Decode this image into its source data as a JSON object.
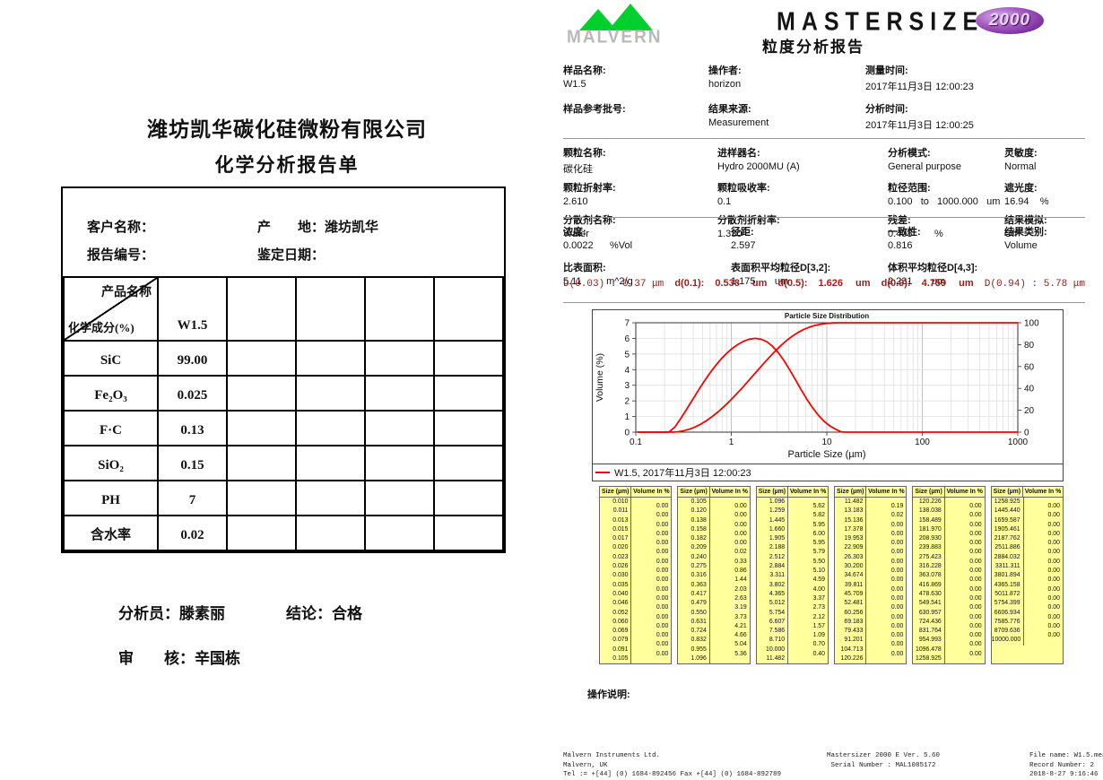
{
  "left_report": {
    "company": "潍坊凯华碳化硅微粉有限公司",
    "title": "化学分析报告单",
    "info": {
      "customer_label": "客户名称：",
      "origin_label": "产　　地：",
      "origin_value": "潍坊凯华",
      "report_no_label": "报告编号：",
      "date_label": "鉴定日期："
    },
    "table": {
      "diag_top": "产品名称",
      "diag_bottom": "化学成分(%)",
      "product": "W1.5",
      "empty_cols": 4,
      "rows": [
        {
          "name": "SiC",
          "value": "99.00"
        },
        {
          "name": "Fe₂O₃",
          "value": "0.025"
        },
        {
          "name": "F·C",
          "value": "0.13"
        },
        {
          "name": "SiO₂",
          "value": "0.15"
        },
        {
          "name": "PH",
          "value": "7"
        },
        {
          "name": "含水率",
          "value": "0.02"
        }
      ]
    },
    "signatures": {
      "analyst_label": "分析员：",
      "analyst": "滕素丽",
      "conclusion_label": "结论：",
      "conclusion": "合格",
      "reviewer_label": "审　　核：",
      "reviewer": "辛国栋"
    }
  },
  "right_report": {
    "brand": {
      "malvern_word": "MALVERN",
      "product_word": "MASTERSIZER",
      "badge": "2000",
      "report_title": "粒度分析报告",
      "green": "#00d02e",
      "purple": "#7b2f9e"
    },
    "sample_fields": [
      {
        "label": "样品名称:",
        "value": "W1.5"
      },
      {
        "label": "操作者:",
        "value": "horizon"
      },
      {
        "label": "测量时间:",
        "value": "2017年11月3日 12:00:23"
      },
      {
        "label": "样品参考批号:",
        "value": ""
      },
      {
        "label": "结果来源:",
        "value": "Measurement"
      },
      {
        "label": "分析时间:",
        "value": "2017年11月3日 12:00:25"
      }
    ],
    "setup_fields": [
      {
        "label": "颗粒名称:",
        "value": "碳化硅"
      },
      {
        "label": "进样器名:",
        "value": "Hydro 2000MU (A)"
      },
      {
        "label": "分析模式:",
        "value": "General purpose"
      },
      {
        "label": "灵敏度:",
        "value": "Normal"
      },
      {
        "label": "颗粒折射率:",
        "value": "2.610"
      },
      {
        "label": "颗粒吸收率:",
        "value": "0.1"
      },
      {
        "label": "粒径范围:",
        "value": "0.100   to   1000.000   um"
      },
      {
        "label": "遮光度:",
        "value": "16.94    %"
      },
      {
        "label": "分散剂名称:",
        "value": "Water"
      },
      {
        "label": "分散剂折射率:",
        "value": "1.330"
      },
      {
        "label": "残差:",
        "value": "0.408        %"
      },
      {
        "label": "结果模拟:",
        "value": "Off"
      }
    ],
    "result_fields": [
      {
        "label": "浓度:",
        "value": "0.0022      %Vol"
      },
      {
        "label": "径距:",
        "value": "2.597"
      },
      {
        "label": "一致性:",
        "value": "0.816"
      },
      {
        "label": "结果类别:",
        "value": "Volume"
      },
      {
        "label": "比表面积:",
        "value": "5.11         m^2/g"
      },
      {
        "label": "表面积平均粒径D[3,2]:",
        "value": "1.175       um"
      },
      {
        "label": "体积平均粒径D[4,3]:",
        "value": "2.231       um"
      },
      {
        "label": "",
        "value": ""
      }
    ],
    "dvalues": [
      {
        "text": "D(0.03) : 0.37 μm",
        "mono": true
      },
      {
        "label": "d(0.1):",
        "value": "0.538",
        "unit": "um"
      },
      {
        "label": "d(0.5):",
        "value": "1.626",
        "unit": "um"
      },
      {
        "label": "d(0.9):",
        "value": "4.759",
        "unit": "um"
      },
      {
        "text": "D(0.94) : 5.78 μm",
        "mono": true
      }
    ],
    "dark_red": "#9e1c1c",
    "operation_note_label": "操作说明:",
    "footer": {
      "left": [
        "Malvern Instruments Ltd.",
        "Malvern, UK",
        "Tel := +[44] (0) 1684-892456 Fax +[44] (0) 1684-892789"
      ],
      "center": [
        "Mastersizer 2000 E Ver. 5.60",
        " Serial Number : MAL1085172"
      ],
      "right": [
        "File name: W1.5.mea",
        "Record Number: 2",
        "2018-8-27 9:16:46"
      ]
    }
  },
  "chart_data": {
    "type": "line",
    "title": "Particle Size Distribution",
    "xlabel": "Particle Size (µm)",
    "ylabel_left": "Volume (%)",
    "x_scale": "log",
    "xlim": [
      0.1,
      1000
    ],
    "ylim_left": [
      0,
      7
    ],
    "ylim_right": [
      0,
      100
    ],
    "x_ticks": [
      "0.1",
      "1",
      "10",
      "100",
      "1000"
    ],
    "y_ticks_left": [
      0,
      1,
      2,
      3,
      4,
      5,
      6,
      7
    ],
    "y_ticks_right": [
      0,
      20,
      40,
      60,
      80,
      100
    ],
    "grid": true,
    "legend": {
      "label": "W1.5, 2017年11月3日  12:00:23",
      "color": "#ff0000",
      "position": "bottom"
    },
    "series": [
      {
        "name": "volume-frequency",
        "axis": "left",
        "color": "#ff0000",
        "x": [
          0.105,
          0.182,
          0.224,
          0.257,
          0.295,
          0.339,
          0.389,
          0.447,
          0.513,
          0.589,
          0.676,
          0.776,
          0.891,
          1.023,
          1.175,
          1.349,
          1.549,
          1.778,
          2.042,
          2.344,
          2.692,
          3.09,
          3.548,
          4.074,
          4.677,
          5.37,
          6.166,
          7.079,
          8.128,
          9.333,
          10.715,
          12.303,
          14.125,
          15.8,
          1000
        ],
        "y": [
          0,
          0,
          0.02,
          0.33,
          0.86,
          1.44,
          2.03,
          2.63,
          3.19,
          3.73,
          4.21,
          4.66,
          5.04,
          5.36,
          5.62,
          5.82,
          5.95,
          6.0,
          5.95,
          5.79,
          5.5,
          5.1,
          4.59,
          4.0,
          3.37,
          2.73,
          2.12,
          1.57,
          1.09,
          0.7,
          0.4,
          0.19,
          0.02,
          0,
          0
        ]
      },
      {
        "name": "cumulative-undersize",
        "axis": "right",
        "color": "#ff0000",
        "x": [
          0.105,
          0.209,
          0.24,
          0.275,
          0.316,
          0.363,
          0.417,
          0.479,
          0.55,
          0.631,
          0.724,
          0.832,
          0.955,
          1.096,
          1.259,
          1.445,
          1.66,
          1.905,
          2.188,
          2.512,
          2.884,
          3.311,
          3.802,
          4.365,
          5.012,
          5.754,
          6.607,
          7.586,
          8.71,
          10.0,
          11.482,
          13.183,
          15.136,
          1000
        ],
        "y": [
          0,
          0,
          0.02,
          0.35,
          1.21,
          2.65,
          4.68,
          7.31,
          10.5,
          14.23,
          18.44,
          23.1,
          28.14,
          33.5,
          39.12,
          44.94,
          50.89,
          56.89,
          62.84,
          68.63,
          74.13,
          79.23,
          83.82,
          87.82,
          91.19,
          93.92,
          96.04,
          97.61,
          98.7,
          99.4,
          99.8,
          99.99,
          100,
          100
        ]
      }
    ]
  },
  "size_tables": {
    "header": [
      "Size (µm)",
      "Volume In %"
    ],
    "tables": [
      {
        "sizes": [
          "0.010",
          "0.011",
          "0.013",
          "0.015",
          "0.017",
          "0.020",
          "0.023",
          "0.026",
          "0.030",
          "0.035",
          "0.040",
          "0.046",
          "0.052",
          "0.060",
          "0.069",
          "0.079",
          "0.091",
          "0.105"
        ],
        "volumes": [
          "0.00",
          "0.00",
          "0.00",
          "0.00",
          "0.00",
          "0.00",
          "0.00",
          "0.00",
          "0.00",
          "0.00",
          "0.00",
          "0.00",
          "0.00",
          "0.00",
          "0.00",
          "0.00",
          "0.00"
        ]
      },
      {
        "sizes": [
          "0.105",
          "0.120",
          "0.138",
          "0.158",
          "0.182",
          "0.209",
          "0.240",
          "0.275",
          "0.316",
          "0.363",
          "0.417",
          "0.479",
          "0.550",
          "0.631",
          "0.724",
          "0.832",
          "0.955",
          "1.096"
        ],
        "volumes": [
          "0.00",
          "0.00",
          "0.00",
          "0.00",
          "0.00",
          "0.02",
          "0.33",
          "0.86",
          "1.44",
          "2.03",
          "2.63",
          "3.19",
          "3.73",
          "4.21",
          "4.66",
          "5.04",
          "5.36"
        ]
      },
      {
        "sizes": [
          "1.096",
          "1.259",
          "1.445",
          "1.660",
          "1.905",
          "2.188",
          "2.512",
          "2.884",
          "3.311",
          "3.802",
          "4.365",
          "5.012",
          "5.754",
          "6.607",
          "7.586",
          "8.710",
          "10.000",
          "11.482"
        ],
        "volumes": [
          "5.62",
          "5.82",
          "5.95",
          "6.00",
          "5.95",
          "5.79",
          "5.50",
          "5.10",
          "4.59",
          "4.00",
          "3.37",
          "2.73",
          "2.12",
          "1.57",
          "1.09",
          "0.70",
          "0.40"
        ]
      },
      {
        "sizes": [
          "11.482",
          "13.183",
          "15.136",
          "17.378",
          "19.953",
          "22.909",
          "26.303",
          "30.200",
          "34.674",
          "39.811",
          "45.709",
          "52.481",
          "60.256",
          "69.183",
          "79.433",
          "91.201",
          "104.713",
          "120.226"
        ],
        "volumes": [
          "0.19",
          "0.02",
          "0.00",
          "0.00",
          "0.00",
          "0.00",
          "0.00",
          "0.00",
          "0.00",
          "0.00",
          "0.00",
          "0.00",
          "0.00",
          "0.00",
          "0.00",
          "0.00",
          "0.00"
        ]
      },
      {
        "sizes": [
          "120.226",
          "138.038",
          "158.489",
          "181.970",
          "208.930",
          "239.883",
          "275.423",
          "316.228",
          "363.078",
          "416.869",
          "478.630",
          "549.541",
          "630.957",
          "724.436",
          "831.764",
          "954.993",
          "1096.478",
          "1258.925"
        ],
        "volumes": [
          "0.00",
          "0.00",
          "0.00",
          "0.00",
          "0.00",
          "0.00",
          "0.00",
          "0.00",
          "0.00",
          "0.00",
          "0.00",
          "0.00",
          "0.00",
          "0.00",
          "0.00",
          "0.00",
          "0.00"
        ]
      },
      {
        "sizes": [
          "1258.925",
          "1445.440",
          "1659.587",
          "1905.461",
          "2187.762",
          "2511.886",
          "2884.032",
          "3311.311",
          "3801.894",
          "4365.158",
          "5011.872",
          "5754.399",
          "6606.934",
          "7585.776",
          "8709.636",
          "10000.000"
        ],
        "volumes": [
          "0.00",
          "0.00",
          "0.00",
          "0.00",
          "0.00",
          "0.00",
          "0.00",
          "0.00",
          "0.00",
          "0.00",
          "0.00",
          "0.00",
          "0.00",
          "0.00",
          "0.00"
        ]
      }
    ]
  }
}
